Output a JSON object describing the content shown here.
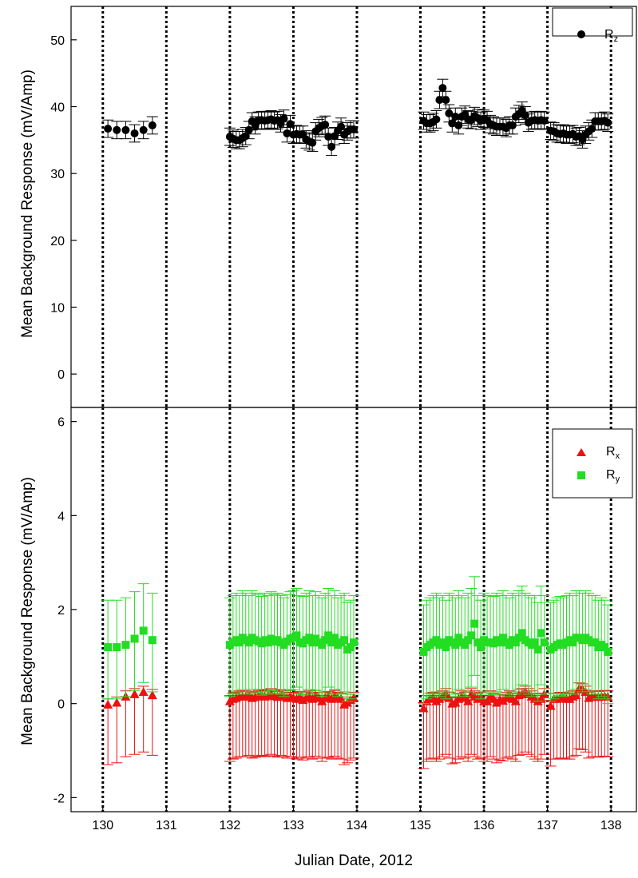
{
  "colors": {
    "rz": "#000000",
    "rx": "#ee1111",
    "ry": "#22dd22",
    "axis": "#000000"
  },
  "shared_x": {
    "label": "Julian Date, 2012",
    "range": [
      129.5,
      138.4
    ],
    "ticks": [
      130,
      131,
      132,
      133,
      134,
      135,
      136,
      137,
      138
    ],
    "tick_labels": [
      "130",
      "131",
      "132",
      "133",
      "134",
      "135",
      "136",
      "137",
      "138"
    ],
    "day_boundaries": [
      130,
      131,
      132,
      133,
      134,
      135,
      136,
      137,
      138
    ]
  },
  "chart_data": [
    {
      "type": "scatter",
      "panel": "top",
      "ylabel": "Mean Background Response (mV/Amp)",
      "ylim": [
        -5,
        55
      ],
      "yticks": [
        0,
        10,
        20,
        30,
        40,
        50
      ],
      "ytick_labels": [
        "0",
        "10",
        "20",
        "30",
        "40",
        "50"
      ],
      "legend": {
        "position": "top-right",
        "entries": [
          {
            "base": "R",
            "sub": "z",
            "marker": "circle"
          }
        ]
      },
      "series": [
        {
          "name": "Rz",
          "marker": "circle",
          "color_key": "rz",
          "err_down": 1.3,
          "err_up": 1.3,
          "x": [
            130.08,
            130.22,
            130.36,
            130.5,
            130.64,
            130.78,
            132.0,
            132.05,
            132.1,
            132.15,
            132.2,
            132.25,
            132.3,
            132.35,
            132.4,
            132.45,
            132.5,
            132.55,
            132.6,
            132.65,
            132.7,
            132.75,
            132.8,
            132.85,
            132.9,
            132.95,
            133.0,
            133.05,
            133.1,
            133.15,
            133.2,
            133.25,
            133.3,
            133.35,
            133.4,
            133.45,
            133.5,
            133.55,
            133.6,
            133.65,
            133.7,
            133.75,
            133.8,
            133.85,
            133.9,
            133.95,
            135.05,
            135.1,
            135.15,
            135.2,
            135.25,
            135.3,
            135.35,
            135.4,
            135.45,
            135.5,
            135.55,
            135.6,
            135.65,
            135.7,
            135.75,
            135.8,
            135.85,
            135.9,
            135.95,
            136.0,
            136.05,
            136.1,
            136.15,
            136.2,
            136.25,
            136.3,
            136.35,
            136.4,
            136.45,
            136.5,
            136.55,
            136.6,
            136.65,
            136.7,
            136.75,
            136.8,
            136.85,
            136.9,
            136.95,
            137.05,
            137.1,
            137.15,
            137.2,
            137.25,
            137.3,
            137.35,
            137.4,
            137.45,
            137.5,
            137.55,
            137.6,
            137.65,
            137.7,
            137.75,
            137.8,
            137.85,
            137.9,
            137.95
          ],
          "y": [
            36.7,
            36.5,
            36.5,
            36.0,
            36.5,
            37.2,
            35.5,
            35.2,
            35.0,
            35.0,
            35.3,
            35.6,
            36.5,
            37.8,
            37.2,
            37.9,
            38.0,
            37.9,
            38.0,
            38.1,
            37.9,
            38.0,
            37.5,
            38.2,
            36.0,
            37.4,
            35.8,
            35.9,
            35.8,
            35.8,
            35.1,
            34.8,
            34.6,
            36.3,
            36.8,
            37.1,
            37.3,
            35.5,
            34.0,
            35.6,
            36.4,
            37.0,
            35.8,
            36.3,
            36.6,
            36.6,
            37.9,
            37.5,
            37.5,
            37.7,
            38.1,
            41.0,
            42.8,
            41.0,
            39.0,
            37.5,
            38.5,
            37.2,
            38.5,
            38.8,
            38.1,
            38.0,
            38.6,
            38.3,
            37.9,
            38.2,
            38.0,
            37.4,
            37.2,
            37.0,
            37.0,
            37.0,
            36.8,
            37.2,
            37.2,
            38.5,
            38.9,
            39.4,
            38.7,
            37.6,
            37.9,
            38.0,
            37.9,
            38.0,
            37.9,
            36.4,
            36.3,
            36.0,
            35.9,
            36.0,
            35.8,
            35.8,
            35.9,
            35.5,
            35.6,
            35.1,
            35.8,
            36.3,
            36.7,
            37.8,
            37.8,
            37.8,
            37.9,
            37.6
          ]
        }
      ]
    },
    {
      "type": "scatter",
      "panel": "bottom",
      "ylabel": "Mean Background Response (mV/Amp)",
      "ylim": [
        -2.3,
        6.3
      ],
      "yticks": [
        -2,
        0,
        2,
        4,
        6
      ],
      "ytick_labels": [
        "-2",
        "0",
        "2",
        "4",
        "6"
      ],
      "legend": {
        "position": "top-right",
        "entries": [
          {
            "base": "R",
            "sub": "x",
            "marker": "triangle"
          },
          {
            "base": "R",
            "sub": "y",
            "marker": "square"
          }
        ]
      },
      "series": [
        {
          "name": "Rx",
          "marker": "triangle",
          "color_key": "rx",
          "err_down": 1.28,
          "err_up": 0.12,
          "x": [
            130.08,
            130.22,
            130.36,
            130.5,
            130.64,
            130.78,
            132.0,
            132.05,
            132.1,
            132.15,
            132.2,
            132.25,
            132.3,
            132.35,
            132.4,
            132.45,
            132.5,
            132.55,
            132.6,
            132.65,
            132.7,
            132.75,
            132.8,
            132.85,
            132.9,
            132.95,
            133.0,
            133.05,
            133.1,
            133.15,
            133.2,
            133.25,
            133.3,
            133.35,
            133.4,
            133.45,
            133.5,
            133.55,
            133.6,
            133.65,
            133.7,
            133.75,
            133.8,
            133.85,
            133.9,
            133.95,
            135.05,
            135.1,
            135.15,
            135.2,
            135.25,
            135.3,
            135.35,
            135.4,
            135.45,
            135.5,
            135.55,
            135.6,
            135.65,
            135.7,
            135.75,
            135.8,
            135.85,
            135.9,
            135.95,
            136.0,
            136.05,
            136.1,
            136.15,
            136.2,
            136.25,
            136.3,
            136.35,
            136.4,
            136.45,
            136.5,
            136.55,
            136.6,
            136.65,
            136.7,
            136.75,
            136.8,
            136.85,
            136.9,
            136.95,
            137.05,
            137.1,
            137.15,
            137.2,
            137.25,
            137.3,
            137.35,
            137.4,
            137.45,
            137.5,
            137.55,
            137.6,
            137.65,
            137.7,
            137.75,
            137.8,
            137.85,
            137.9,
            137.95
          ],
          "y": [
            -0.02,
            0.02,
            0.15,
            0.2,
            0.25,
            0.18,
            0.05,
            0.1,
            0.12,
            0.15,
            0.15,
            0.15,
            0.18,
            0.12,
            0.14,
            0.16,
            0.18,
            0.15,
            0.17,
            0.2,
            0.16,
            0.14,
            0.18,
            0.15,
            0.12,
            0.16,
            0.12,
            0.1,
            0.14,
            0.08,
            0.12,
            0.15,
            0.1,
            0.16,
            0.12,
            0.05,
            0.12,
            0.14,
            0.1,
            0.16,
            0.12,
            0.1,
            -0.02,
            0.02,
            0.08,
            0.12,
            -0.1,
            0.05,
            0.1,
            0.12,
            0.05,
            0.1,
            0.15,
            0.2,
            0.12,
            0.0,
            0.02,
            0.1,
            0.15,
            0.12,
            0.05,
            0.2,
            0.15,
            0.1,
            0.12,
            0.05,
            0.05,
            0.15,
            0.1,
            0.02,
            0.08,
            0.06,
            0.12,
            0.15,
            0.1,
            0.05,
            0.18,
            0.2,
            0.25,
            0.2,
            0.15,
            0.1,
            0.05,
            0.1,
            0.2,
            -0.05,
            0.1,
            0.1,
            0.12,
            0.12,
            0.1,
            0.1,
            0.15,
            0.18,
            0.32,
            0.3,
            0.25,
            0.12,
            0.15,
            0.15,
            0.14,
            0.15,
            0.16,
            0.15
          ]
        },
        {
          "name": "Ry",
          "marker": "square",
          "color_key": "ry",
          "err_down": 1.1,
          "err_up": 1.0,
          "x": [
            130.08,
            130.22,
            130.36,
            130.5,
            130.64,
            130.78,
            132.0,
            132.05,
            132.1,
            132.15,
            132.2,
            132.25,
            132.3,
            132.35,
            132.4,
            132.45,
            132.5,
            132.55,
            132.6,
            132.65,
            132.7,
            132.75,
            132.8,
            132.85,
            132.9,
            132.95,
            133.0,
            133.05,
            133.1,
            133.15,
            133.2,
            133.25,
            133.3,
            133.35,
            133.4,
            133.45,
            133.5,
            133.55,
            133.6,
            133.65,
            133.7,
            133.75,
            133.8,
            133.85,
            133.9,
            133.95,
            135.05,
            135.1,
            135.15,
            135.2,
            135.25,
            135.3,
            135.35,
            135.4,
            135.45,
            135.5,
            135.55,
            135.6,
            135.65,
            135.7,
            135.75,
            135.8,
            135.85,
            135.9,
            135.95,
            136.0,
            136.05,
            136.1,
            136.15,
            136.2,
            136.25,
            136.3,
            136.35,
            136.4,
            136.45,
            136.5,
            136.55,
            136.6,
            136.65,
            136.7,
            136.75,
            136.8,
            136.85,
            136.9,
            136.95,
            137.05,
            137.1,
            137.15,
            137.2,
            137.25,
            137.3,
            137.35,
            137.4,
            137.45,
            137.5,
            137.55,
            137.6,
            137.65,
            137.7,
            137.75,
            137.8,
            137.85,
            137.9,
            137.95
          ],
          "y": [
            1.2,
            1.2,
            1.25,
            1.38,
            1.55,
            1.35,
            1.25,
            1.3,
            1.35,
            1.3,
            1.4,
            1.35,
            1.3,
            1.4,
            1.35,
            1.32,
            1.28,
            1.35,
            1.3,
            1.38,
            1.32,
            1.35,
            1.3,
            1.25,
            1.32,
            1.38,
            1.4,
            1.45,
            1.3,
            1.28,
            1.35,
            1.4,
            1.3,
            1.38,
            1.3,
            1.25,
            1.35,
            1.45,
            1.3,
            1.4,
            1.25,
            1.3,
            1.35,
            1.15,
            1.2,
            1.3,
            1.1,
            1.2,
            1.25,
            1.3,
            1.35,
            1.25,
            1.3,
            1.2,
            1.35,
            1.3,
            1.25,
            1.4,
            1.3,
            1.25,
            1.35,
            1.45,
            1.7,
            1.3,
            1.2,
            1.35,
            1.3,
            1.3,
            1.28,
            1.35,
            1.3,
            1.4,
            1.3,
            1.25,
            1.35,
            1.3,
            1.4,
            1.5,
            1.35,
            1.3,
            1.25,
            1.3,
            1.15,
            1.5,
            1.3,
            1.15,
            1.2,
            1.25,
            1.28,
            1.25,
            1.3,
            1.35,
            1.3,
            1.4,
            1.4,
            1.35,
            1.4,
            1.35,
            1.3,
            1.3,
            1.2,
            1.25,
            1.2,
            1.1
          ]
        }
      ]
    }
  ]
}
